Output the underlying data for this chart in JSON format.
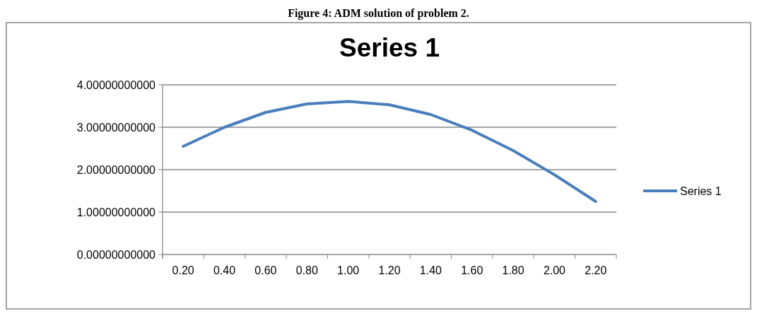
{
  "chart_data": {
    "type": "line",
    "title": "Series 1",
    "annotations": [
      "Figure 4: ADM solution of problem 2."
    ],
    "categories": [
      "0.20",
      "0.40",
      "0.60",
      "0.80",
      "1.00",
      "1.20",
      "1.40",
      "1.60",
      "1.80",
      "2.00",
      "2.20"
    ],
    "series": [
      {
        "name": "Series 1",
        "color": "#4a7ebb",
        "values": [
          2.55,
          3.0,
          3.35,
          3.55,
          3.61,
          3.53,
          3.3,
          2.93,
          2.45,
          1.88,
          1.25
        ]
      }
    ],
    "ylim": [
      0,
      4
    ],
    "yticks": [
      {
        "value": 0,
        "label": "0.00000000000"
      },
      {
        "value": 1,
        "label": "1.00000000000"
      },
      {
        "value": 2,
        "label": "2.00000000000"
      },
      {
        "value": 3,
        "label": "3.00000000000"
      },
      {
        "value": 4,
        "label": "4.00000000000"
      }
    ],
    "grid": "y",
    "legend": "right",
    "marker": "none",
    "line_style": "solid"
  }
}
